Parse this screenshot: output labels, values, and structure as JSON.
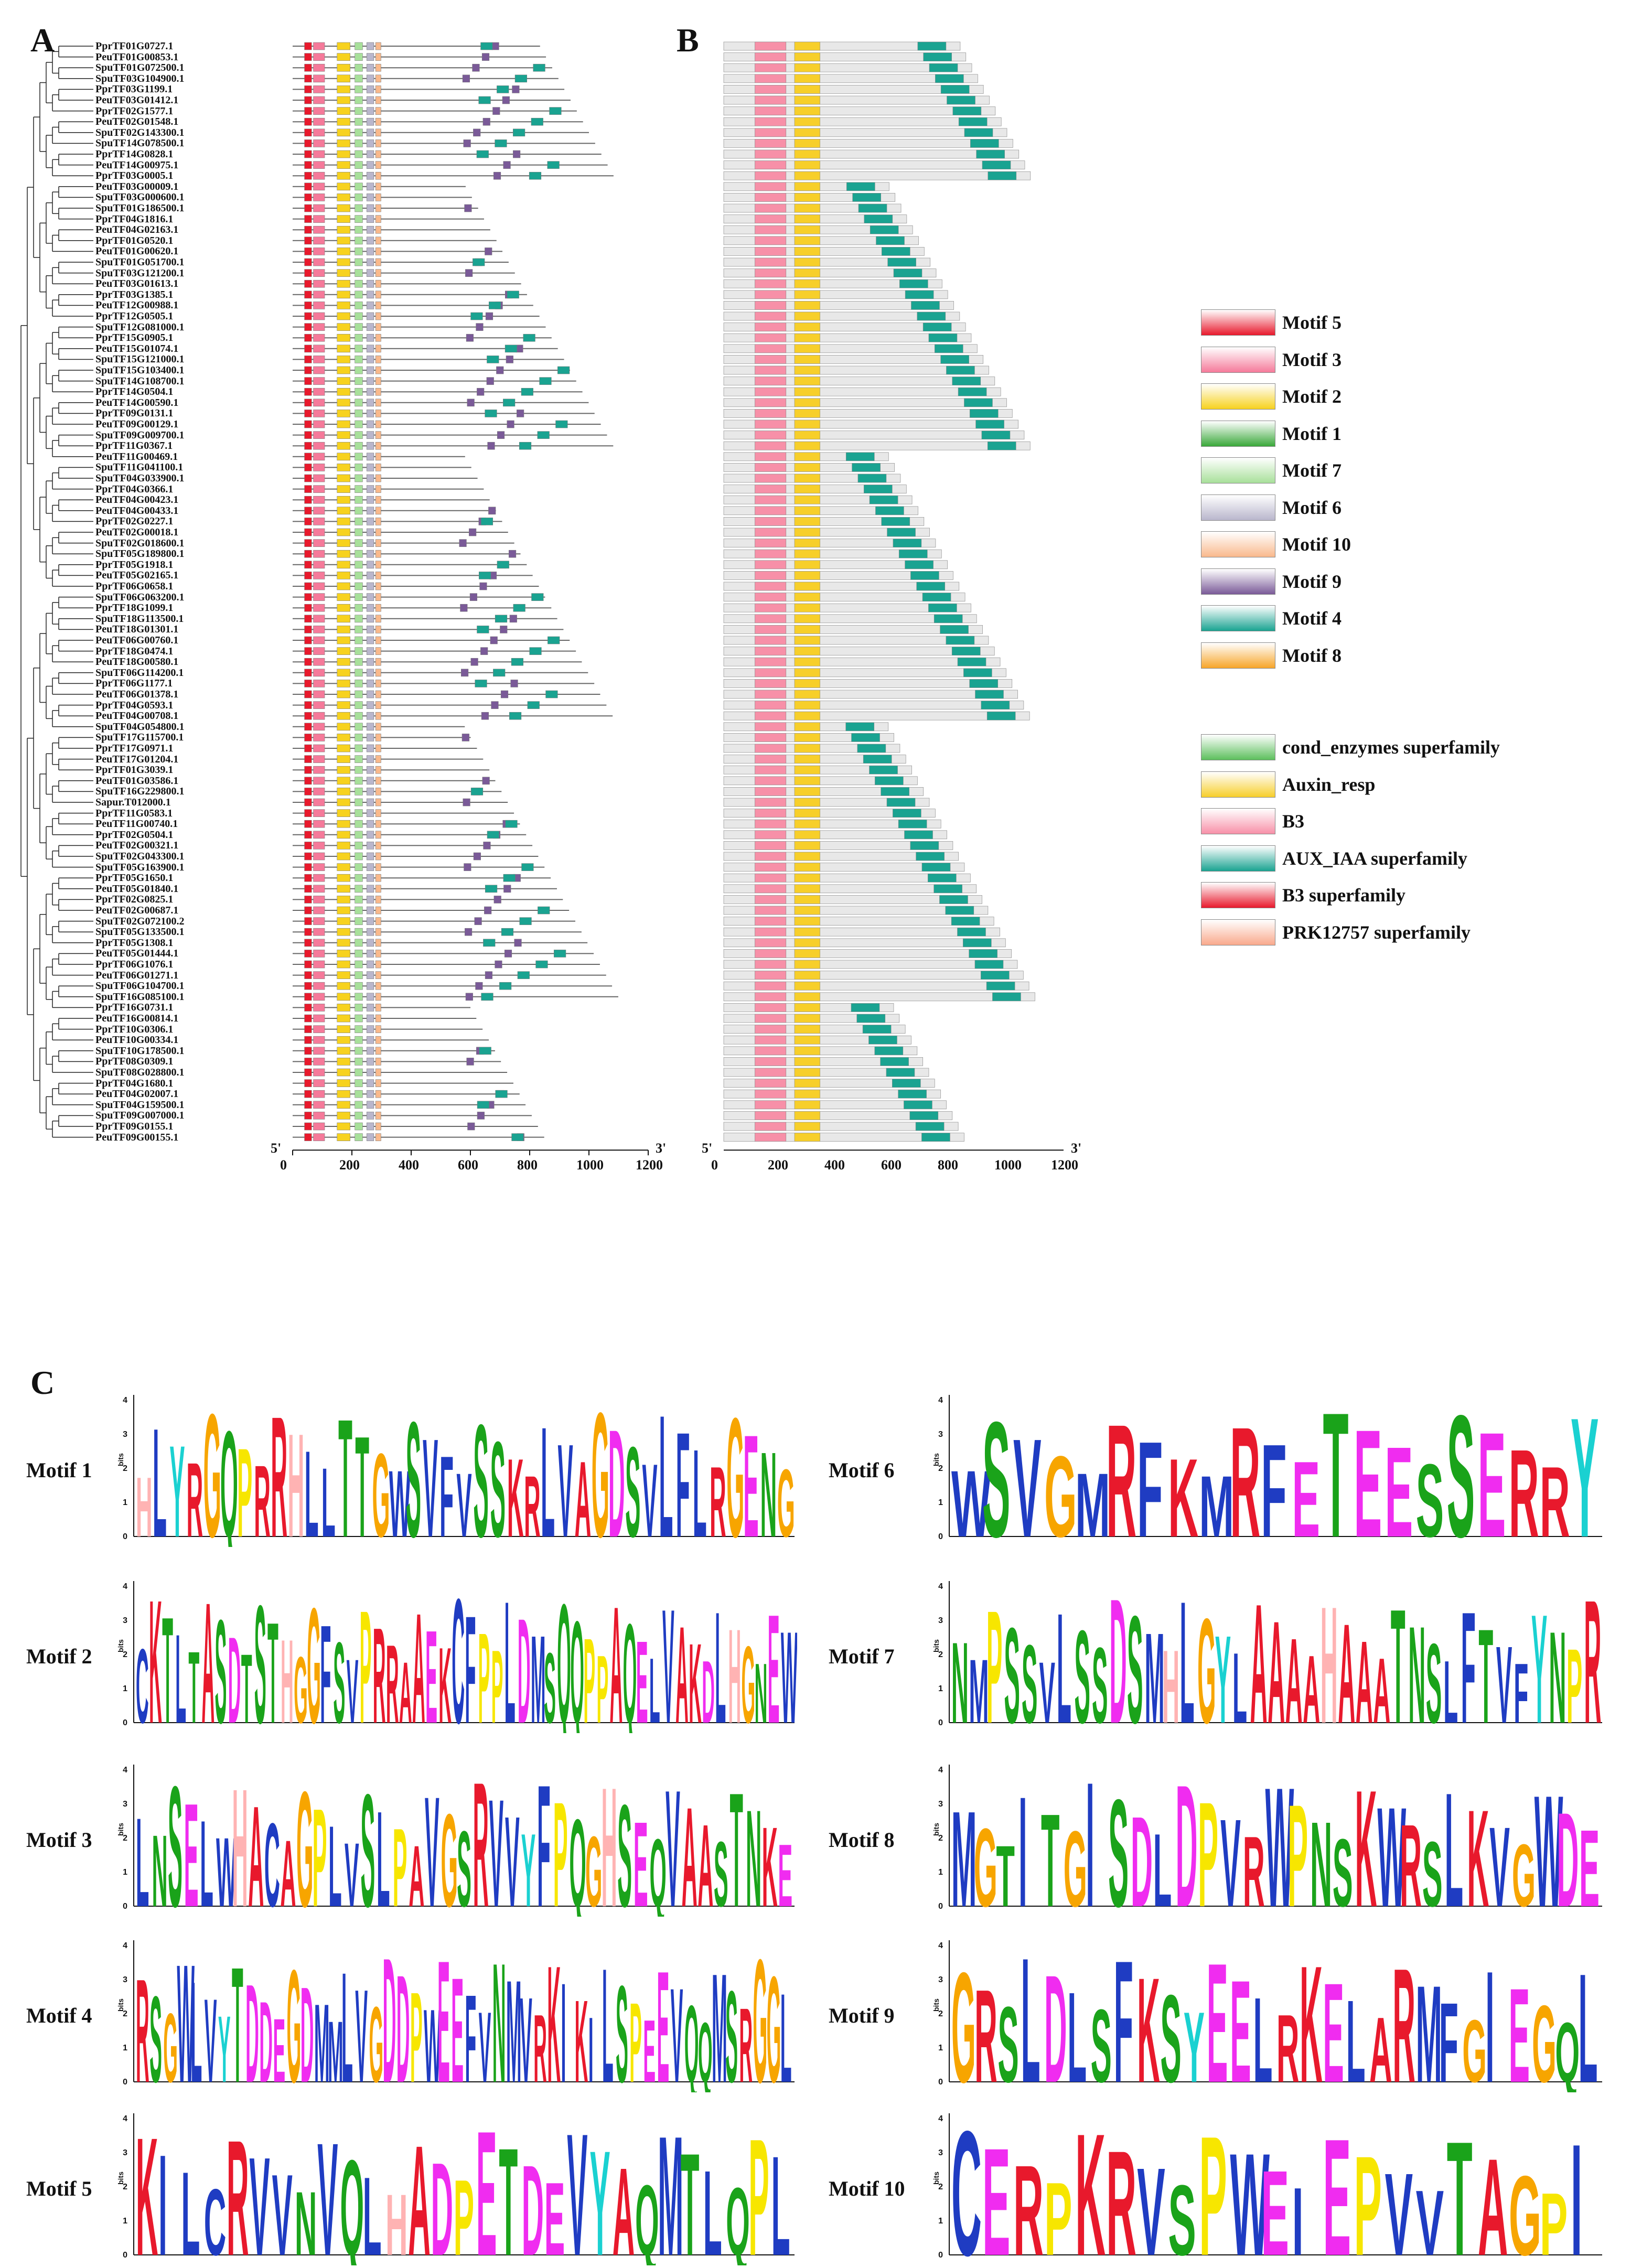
{
  "panels": {
    "a": "A",
    "b": "B",
    "c": "C"
  },
  "axis": {
    "start_label": "5'",
    "end_label": "3'",
    "ticks": [
      "0",
      "200",
      "400",
      "600",
      "800",
      "1000",
      "1200"
    ],
    "logo_axis_label": "bits",
    "logo_ticks": [
      "0",
      "1",
      "2",
      "3",
      "4"
    ]
  },
  "genes": [
    "PprTF01G0727.1",
    "PeuTF01G00853.1",
    "SpuTF01G072500.1",
    "SpuTF03G104900.1",
    "PprTF03G1199.1",
    "PeuTF03G01412.1",
    "PprTF02G1577.1",
    "PeuTF02G01548.1",
    "SpuTF02G143300.1",
    "SpuTF14G078500.1",
    "PprTF14G0828.1",
    "PeuTF14G00975.1",
    "PprTF03G0005.1",
    "PeuTF03G00009.1",
    "SpuTF03G000600.1",
    "SpuTF01G186500.1",
    "PprTF04G1816.1",
    "PeuTF04G02163.1",
    "PprTF01G0520.1",
    "PeuTF01G00620.1",
    "SpuTF01G051700.1",
    "SpuTF03G121200.1",
    "PeuTF03G01613.1",
    "PprTF03G1385.1",
    "PeuTF12G00988.1",
    "PprTF12G0505.1",
    "SpuTF12G081000.1",
    "PprTF15G0905.1",
    "PeuTF15G01074.1",
    "SpuTF15G121000.1",
    "SpuTF15G103400.1",
    "SpuTF14G108700.1",
    "PprTF14G0504.1",
    "PeuTF14G00590.1",
    "PprTF09G0131.1",
    "PeuTF09G00129.1",
    "SpuTF09G009700.1",
    "PprTF11G0367.1",
    "PeuTF11G00469.1",
    "SpuTF11G041100.1",
    "SpuTF04G033900.1",
    "PprTF04G0366.1",
    "PeuTF04G00423.1",
    "PeuTF04G00433.1",
    "PprTF02G0227.1",
    "PeuTF02G00018.1",
    "SpuTF02G018600.1",
    "SpuTF05G189800.1",
    "PprTF05G1918.1",
    "PeuTF05G02165.1",
    "PprTF06G0658.1",
    "SpuTF06G063200.1",
    "PprTF18G1099.1",
    "SpuTF18G113500.1",
    "PeuTF18G01301.1",
    "PeuTF06G00760.1",
    "PprTF18G0474.1",
    "PeuTF18G00580.1",
    "SpuTF06G114200.1",
    "PprTF06G1177.1",
    "PeuTF06G01378.1",
    "PprTF04G0593.1",
    "PeuTF04G00708.1",
    "SpuTF04G054800.1",
    "SpuTF17G115700.1",
    "PprTF17G0971.1",
    "PeuTF17G01204.1",
    "PprTF01G3039.1",
    "PeuTF01G03586.1",
    "SpuTF16G229800.1",
    "Sapur.T012000.1",
    "PprTF11G0583.1",
    "PeuTF11G00740.1",
    "PprTF02G0504.1",
    "PeuTF02G00321.1",
    "SpuTF02G043300.1",
    "SpuTF05G163900.1",
    "PprTF05G1650.1",
    "PeuTF05G01840.1",
    "PprTF02G0825.1",
    "PeuTF02G00687.1",
    "SpuTF02G072100.2",
    "SpuTF05G133500.1",
    "PprTF05G1308.1",
    "PeuTF05G01444.1",
    "PprTF06G1076.1",
    "PeuTF06G01271.1",
    "SpuTF06G104700.1",
    "SpuTF16G085100.1",
    "PprTF16G0731.1",
    "PeuTF16G00814.1",
    "PprTF10G0306.1",
    "PeuTF10G00334.1",
    "SpuTF10G178500.1",
    "PprTF08G0309.1",
    "SpuTF08G028800.1",
    "PprTF04G1680.1",
    "PeuTF04G02007.1",
    "SpuTF04G159500.1",
    "SpuTF09G007000.1",
    "PprTF09G0155.1",
    "PeuTF09G00155.1"
  ],
  "legend_motifs": [
    {
      "label": "Motif 5",
      "color": "#e8192c"
    },
    {
      "label": "Motif 3",
      "color": "#f57a9a"
    },
    {
      "label": "Motif 2",
      "color": "#f7d21e"
    },
    {
      "label": "Motif 1",
      "color": "#3aa83a"
    },
    {
      "label": "Motif 7",
      "color": "#a8e09a"
    },
    {
      "label": "Motif 6",
      "color": "#b9b6cc"
    },
    {
      "label": "Motif 10",
      "color": "#f9b98c"
    },
    {
      "label": "Motif 9",
      "color": "#7a5a98"
    },
    {
      "label": "Motif 4",
      "color": "#1aa391"
    },
    {
      "label": "Motif 8",
      "color": "#f7a529"
    }
  ],
  "legend_domains": [
    {
      "label": "cond_enzymes superfamily",
      "color": "#5cbf5c"
    },
    {
      "label": "Auxin_resp",
      "color": "#f7cf2a"
    },
    {
      "label": "B3",
      "color": "#f790a8"
    },
    {
      "label": "AUX_IAA superfamily",
      "color": "#1aa391"
    },
    {
      "label": "B3 superfamily",
      "color": "#e8192c"
    },
    {
      "label": "PRK12757 superfamily",
      "color": "#f9a98c"
    }
  ],
  "motifs": [
    {
      "label": "Motif 1",
      "seq": "HLYRGQPRRHLLTTGWSVFVSSKRLVAGDSVLFLRGENG"
    },
    {
      "label": "Motif 2",
      "seq": "CKTLTASDTSTHGGFSVPRRAAEKCFPPLDMSQQPPAQELVAKDLHGNEW"
    },
    {
      "label": "Motif 3",
      "seq": "LNSELWHACAGPLVSLPAVGSRVVYFPQGHSEQVAASTNKE"
    },
    {
      "label": "Motif 4",
      "seq": "RSGWLVYTDDEGDMMLVGDDPWEEFVNMVRKIKILSPEEVQQMSRGGL"
    },
    {
      "label": "Motif 5",
      "seq": "KILCRVVNVQLHADPETDEVYAQMTLQPL"
    },
    {
      "label": "Motif 6",
      "seq": "WSVGMRFKMRFETEESSERRY"
    },
    {
      "label": "Motif 7",
      "seq": "NMPSSVLSSDSMHLGYLAAAAHAAATNSLFTVFYNPR"
    },
    {
      "label": "Motif 8",
      "seq": "MGTITGISDLDPVRWPNSKWRSLKVGWDE"
    },
    {
      "label": "Motif 9",
      "seq": "GRSLDLSFKSYEELRKELARMFGIEGQL"
    },
    {
      "label": "Motif 10",
      "seq": "CERPKRVSPWEIEPVVTAGPI"
    }
  ]
}
